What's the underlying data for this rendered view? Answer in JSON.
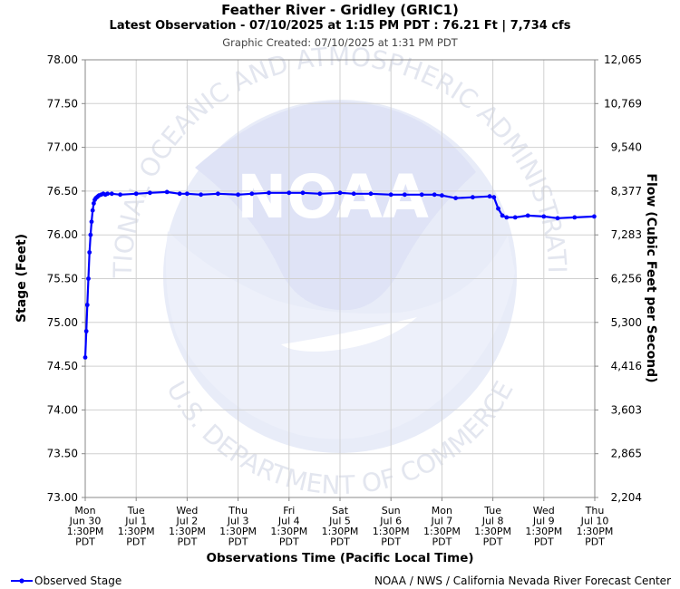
{
  "title": "Feather River - Gridley (GRIC1)",
  "subtitle": "Latest Observation - 07/10/2025 at 1:15 PM PDT : 76.21 Ft | 7,734 cfs",
  "created": "Graphic Created: 07/10/2025 at 1:31 PM PDT",
  "legend_label": "Observed Stage",
  "credit": "NOAA / NWS / California Nevada River Forecast Center",
  "watermark": {
    "ring_text_top": "NATIONAL OCEANIC AND ATMOSPHERIC ADMINISTRATION",
    "ring_text_bottom": "U.S. DEPARTMENT OF COMMERCE",
    "logo_text": "NOAA"
  },
  "colors": {
    "series": "#0000ff",
    "grid": "#d0d0d0",
    "watermark": "#e8ecf8"
  },
  "chart_data": {
    "type": "line",
    "title": "Feather River - Gridley (GRIC1)",
    "xlabel": "Observations Time (Pacific Local Time)",
    "ylabel": "Stage (Feet)",
    "y2label": "Flow (Cubic Feet per Second)",
    "ylim": [
      73.0,
      78.0
    ],
    "xlim": [
      "2025-06-30 13:30",
      "2025-07-10 13:30"
    ],
    "grid": true,
    "legend_position": "bottom-left",
    "y_ticks": [
      "78.00",
      "77.50",
      "77.00",
      "76.50",
      "76.00",
      "75.50",
      "75.00",
      "74.50",
      "74.00",
      "73.50",
      "73.00"
    ],
    "y2_ticks": [
      "12,065",
      "10,769",
      "9,540",
      "8,377",
      "7,283",
      "6,256",
      "5,300",
      "4,416",
      "3,603",
      "2,865",
      "2,204"
    ],
    "x_ticks": [
      [
        "Mon",
        "Jun 30",
        "1:30PM",
        "PDT"
      ],
      [
        "Tue",
        "Jul 1",
        "1:30PM",
        "PDT"
      ],
      [
        "Wed",
        "Jul 2",
        "1:30PM",
        "PDT"
      ],
      [
        "Thu",
        "Jul 3",
        "1:30PM",
        "PDT"
      ],
      [
        "Fri",
        "Jul 4",
        "1:30PM",
        "PDT"
      ],
      [
        "Sat",
        "Jul 5",
        "1:30PM",
        "PDT"
      ],
      [
        "Sun",
        "Jul 6",
        "1:30PM",
        "PDT"
      ],
      [
        "Mon",
        "Jul 7",
        "1:30PM",
        "PDT"
      ],
      [
        "Tue",
        "Jul 8",
        "1:30PM",
        "PDT"
      ],
      [
        "Wed",
        "Jul 9",
        "1:30PM",
        "PDT"
      ],
      [
        "Thu",
        "Jul 10",
        "1:30PM",
        "PDT"
      ]
    ],
    "series": [
      {
        "name": "Observed Stage",
        "x": [
          "2025-06-30 13:30",
          "2025-06-30 14:00",
          "2025-06-30 14:30",
          "2025-06-30 15:00",
          "2025-06-30 15:30",
          "2025-06-30 16:00",
          "2025-06-30 16:30",
          "2025-06-30 17:00",
          "2025-06-30 17:30",
          "2025-06-30 18:00",
          "2025-06-30 18:30",
          "2025-06-30 19:00",
          "2025-06-30 19:30",
          "2025-06-30 20:00",
          "2025-06-30 21:00",
          "2025-06-30 22:00",
          "2025-06-30 23:00",
          "2025-07-01 00:00",
          "2025-07-01 02:00",
          "2025-07-01 06:00",
          "2025-07-01 13:30",
          "2025-07-01 20:00",
          "2025-07-02 04:00",
          "2025-07-02 10:00",
          "2025-07-02 13:30",
          "2025-07-02 20:00",
          "2025-07-03 04:00",
          "2025-07-03 13:30",
          "2025-07-03 20:00",
          "2025-07-04 04:00",
          "2025-07-04 13:30",
          "2025-07-04 20:00",
          "2025-07-05 04:00",
          "2025-07-05 13:30",
          "2025-07-05 20:00",
          "2025-07-06 04:00",
          "2025-07-06 13:30",
          "2025-07-06 20:00",
          "2025-07-07 04:00",
          "2025-07-07 10:00",
          "2025-07-07 13:30",
          "2025-07-07 20:00",
          "2025-07-08 04:00",
          "2025-07-08 12:00",
          "2025-07-08 14:00",
          "2025-07-08 16:00",
          "2025-07-08 18:00",
          "2025-07-08 20:00",
          "2025-07-09 00:00",
          "2025-07-09 06:00",
          "2025-07-09 13:30",
          "2025-07-09 20:00",
          "2025-07-10 04:00",
          "2025-07-10 13:15"
        ],
        "y": [
          74.6,
          74.9,
          75.2,
          75.5,
          75.8,
          76.0,
          76.15,
          76.28,
          76.36,
          76.4,
          76.42,
          76.43,
          76.44,
          76.45,
          76.46,
          76.47,
          76.46,
          76.47,
          76.47,
          76.46,
          76.47,
          76.48,
          76.49,
          76.47,
          76.47,
          76.46,
          76.47,
          76.46,
          76.47,
          76.48,
          76.48,
          76.48,
          76.47,
          76.48,
          76.47,
          76.47,
          76.46,
          76.46,
          76.46,
          76.46,
          76.45,
          76.42,
          76.43,
          76.44,
          76.43,
          76.3,
          76.22,
          76.2,
          76.2,
          76.22,
          76.21,
          76.19,
          76.2,
          76.21
        ]
      }
    ]
  }
}
